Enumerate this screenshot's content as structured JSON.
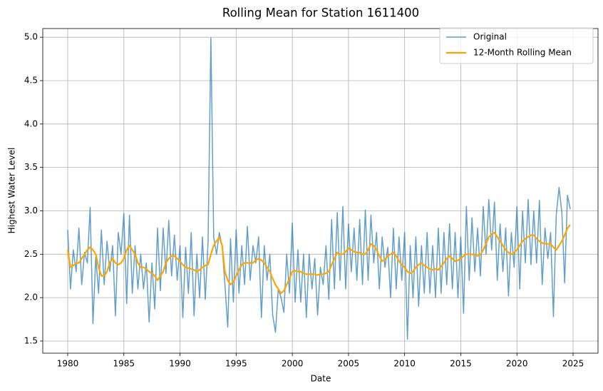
{
  "chart_data": {
    "type": "line",
    "title": "Rolling Mean for Station 1611400",
    "xlabel": "Date",
    "ylabel": "Highest Water Level",
    "x": [
      1980,
      1980.25,
      1980.5,
      1980.75,
      1981,
      1981.25,
      1981.5,
      1981.75,
      1982,
      1982.25,
      1982.5,
      1982.75,
      1983,
      1983.25,
      1983.5,
      1983.75,
      1984,
      1984.25,
      1984.5,
      1984.75,
      1985,
      1985.25,
      1985.5,
      1985.75,
      1986,
      1986.25,
      1986.5,
      1986.75,
      1987,
      1987.25,
      1987.5,
      1987.75,
      1988,
      1988.25,
      1988.5,
      1988.75,
      1989,
      1989.25,
      1989.5,
      1989.75,
      1990,
      1990.25,
      1990.5,
      1990.75,
      1991,
      1991.25,
      1991.5,
      1991.75,
      1992,
      1992.25,
      1992.5,
      1992.75,
      1993,
      1993.25,
      1993.5,
      1993.75,
      1994,
      1994.25,
      1994.5,
      1994.75,
      1995,
      1995.25,
      1995.5,
      1995.75,
      1996,
      1996.25,
      1996.5,
      1996.75,
      1997,
      1997.25,
      1997.5,
      1997.75,
      1998,
      1998.25,
      1998.5,
      1998.75,
      1999,
      1999.25,
      1999.5,
      1999.75,
      2000,
      2000.25,
      2000.5,
      2000.75,
      2001,
      2001.25,
      2001.5,
      2001.75,
      2002,
      2002.25,
      2002.5,
      2002.75,
      2003,
      2003.25,
      2003.5,
      2003.75,
      2004,
      2004.25,
      2004.5,
      2004.75,
      2005,
      2005.25,
      2005.5,
      2005.75,
      2006,
      2006.25,
      2006.5,
      2006.75,
      2007,
      2007.25,
      2007.5,
      2007.75,
      2008,
      2008.25,
      2008.5,
      2008.75,
      2009,
      2009.25,
      2009.5,
      2009.75,
      2010,
      2010.25,
      2010.5,
      2010.75,
      2011,
      2011.25,
      2011.5,
      2011.75,
      2012,
      2012.25,
      2012.5,
      2012.75,
      2013,
      2013.25,
      2013.5,
      2013.75,
      2014,
      2014.25,
      2014.5,
      2014.75,
      2015,
      2015.25,
      2015.5,
      2015.75,
      2016,
      2016.25,
      2016.5,
      2016.75,
      2017,
      2017.25,
      2017.5,
      2017.75,
      2018,
      2018.25,
      2018.5,
      2018.75,
      2019,
      2019.25,
      2019.5,
      2019.75,
      2020,
      2020.25,
      2020.5,
      2020.75,
      2021,
      2021.25,
      2021.5,
      2021.75,
      2022,
      2022.25,
      2022.5,
      2022.75,
      2023,
      2023.25,
      2023.5,
      2023.75,
      2024,
      2024.25,
      2024.5,
      2024.75
    ],
    "series": [
      {
        "name": "Original",
        "color": "#1f77b4",
        "opacity": 0.7,
        "width": 1.5,
        "values": [
          2.78,
          2.1,
          2.55,
          2.3,
          2.8,
          2.15,
          2.52,
          2.4,
          3.04,
          1.7,
          2.47,
          2.05,
          2.78,
          2.15,
          2.65,
          2.3,
          2.6,
          1.79,
          2.75,
          2.5,
          2.97,
          1.93,
          2.95,
          2.05,
          2.6,
          2.1,
          2.5,
          2.1,
          2.4,
          1.72,
          2.4,
          1.87,
          2.8,
          2.08,
          2.8,
          2.28,
          2.89,
          2.25,
          2.72,
          2.2,
          2.6,
          1.77,
          2.58,
          2.05,
          2.75,
          1.79,
          2.5,
          2.0,
          2.7,
          1.98,
          2.65,
          4.99,
          2.7,
          2.5,
          2.75,
          2.6,
          2.15,
          1.66,
          2.68,
          1.95,
          2.78,
          2.05,
          2.6,
          2.15,
          2.82,
          2.2,
          2.6,
          2.4,
          2.7,
          1.77,
          2.6,
          2.2,
          2.5,
          1.8,
          1.6,
          2.1,
          2.0,
          1.83,
          2.5,
          2.05,
          2.86,
          1.95,
          2.55,
          1.95,
          2.5,
          1.77,
          2.5,
          2.1,
          2.45,
          1.8,
          2.35,
          2.15,
          2.6,
          1.98,
          2.9,
          2.1,
          2.98,
          2.2,
          3.05,
          2.1,
          2.85,
          2.3,
          2.8,
          2.2,
          2.9,
          2.15,
          3.01,
          2.2,
          2.95,
          2.4,
          2.75,
          2.1,
          2.7,
          2.35,
          2.58,
          2.0,
          2.8,
          2.1,
          2.7,
          2.2,
          2.75,
          1.52,
          2.6,
          2.0,
          2.7,
          1.9,
          2.6,
          2.05,
          2.75,
          2.05,
          2.6,
          2.0,
          2.8,
          2.05,
          2.75,
          2.15,
          2.85,
          2.1,
          2.75,
          2.0,
          2.7,
          1.82,
          3.05,
          2.2,
          2.92,
          2.3,
          2.8,
          2.25,
          3.05,
          2.5,
          3.13,
          2.55,
          3.1,
          2.2,
          2.85,
          2.3,
          2.8,
          2.02,
          2.75,
          2.35,
          3.05,
          2.1,
          3.0,
          2.4,
          3.13,
          2.38,
          3.0,
          2.4,
          3.12,
          2.15,
          2.8,
          2.45,
          2.75,
          1.78,
          2.95,
          3.27,
          2.98,
          2.17,
          3.18,
          3.02
        ]
      },
      {
        "name": "12-Month Rolling Mean",
        "color": "#ffa500",
        "opacity": 1,
        "width": 2.2,
        "values": [
          2.55,
          2.35,
          2.37,
          2.4,
          2.4,
          2.45,
          2.5,
          2.55,
          2.58,
          2.55,
          2.5,
          2.35,
          2.25,
          2.25,
          2.3,
          2.4,
          2.45,
          2.4,
          2.38,
          2.4,
          2.45,
          2.55,
          2.6,
          2.55,
          2.5,
          2.4,
          2.35,
          2.35,
          2.33,
          2.3,
          2.28,
          2.25,
          2.2,
          2.25,
          2.3,
          2.4,
          2.45,
          2.48,
          2.48,
          2.45,
          2.42,
          2.38,
          2.35,
          2.34,
          2.33,
          2.32,
          2.3,
          2.32,
          2.35,
          2.37,
          2.38,
          2.5,
          2.6,
          2.65,
          2.7,
          2.6,
          2.3,
          2.2,
          2.15,
          2.18,
          2.25,
          2.32,
          2.38,
          2.4,
          2.4,
          2.4,
          2.4,
          2.43,
          2.45,
          2.43,
          2.4,
          2.35,
          2.3,
          2.22,
          2.15,
          2.1,
          2.05,
          2.08,
          2.15,
          2.22,
          2.3,
          2.31,
          2.3,
          2.3,
          2.28,
          2.27,
          2.27,
          2.27,
          2.27,
          2.26,
          2.27,
          2.27,
          2.28,
          2.3,
          2.38,
          2.45,
          2.52,
          2.5,
          2.5,
          2.53,
          2.57,
          2.55,
          2.53,
          2.52,
          2.52,
          2.5,
          2.5,
          2.55,
          2.62,
          2.6,
          2.55,
          2.48,
          2.42,
          2.44,
          2.48,
          2.5,
          2.52,
          2.48,
          2.42,
          2.38,
          2.35,
          2.3,
          2.28,
          2.3,
          2.35,
          2.38,
          2.4,
          2.37,
          2.35,
          2.33,
          2.32,
          2.33,
          2.32,
          2.36,
          2.4,
          2.45,
          2.48,
          2.45,
          2.42,
          2.43,
          2.45,
          2.48,
          2.5,
          2.5,
          2.5,
          2.49,
          2.48,
          2.5,
          2.55,
          2.62,
          2.7,
          2.73,
          2.75,
          2.7,
          2.65,
          2.6,
          2.55,
          2.52,
          2.5,
          2.52,
          2.55,
          2.6,
          2.65,
          2.68,
          2.7,
          2.72,
          2.72,
          2.68,
          2.65,
          2.63,
          2.62,
          2.62,
          2.62,
          2.58,
          2.55,
          2.6,
          2.65,
          2.72,
          2.8,
          2.84
        ]
      }
    ],
    "xlim": [
      1977.78,
      2027.22
    ],
    "ylim": [
      1.36,
      5.1
    ],
    "xticks": [
      1980,
      1985,
      1990,
      1995,
      2000,
      2005,
      2010,
      2015,
      2020,
      2025
    ],
    "yticks": [
      1.5,
      {
        "value": 2,
        "label": "2.0"
      },
      2.5,
      {
        "value": 3,
        "label": "3.0"
      },
      3.5,
      {
        "value": 4,
        "label": "4.0"
      },
      4.5,
      {
        "value": 5,
        "label": "5.0"
      }
    ],
    "grid": true,
    "legend": "upper right"
  }
}
